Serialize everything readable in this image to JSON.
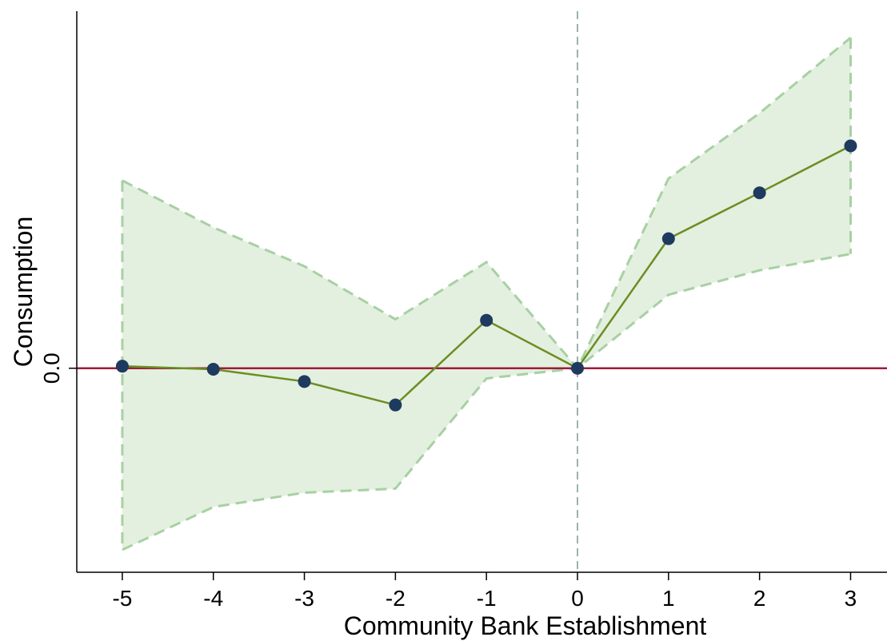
{
  "chart_data": {
    "type": "line",
    "xlabel": "Community Bank Establishment",
    "ylabel": "Consumption",
    "x": [
      -5,
      -4,
      -3,
      -2,
      -1,
      0,
      1,
      2,
      3
    ],
    "x_tick_labels": [
      "-5",
      "-4",
      "-3",
      "-2",
      "-1",
      "0",
      "1",
      "2",
      "3"
    ],
    "y_tick_labels": [
      "0.0"
    ],
    "y_ticks": [
      0.0
    ],
    "xlim": [
      -5.5,
      3.4
    ],
    "ylim": [
      -1.0,
      1.75
    ],
    "series": [
      {
        "values": [
          0.01,
          -0.005,
          -0.065,
          -0.18,
          0.235,
          0.0,
          0.635,
          0.86,
          1.09
        ],
        "ci_upper": [
          0.92,
          0.69,
          0.5,
          0.24,
          0.52,
          0.0,
          0.93,
          1.25,
          1.62
        ],
        "ci_lower": [
          -0.89,
          -0.68,
          -0.61,
          -0.59,
          -0.05,
          0.0,
          0.36,
          0.48,
          0.56
        ]
      }
    ],
    "reference_lines": {
      "horizontal_y": 0.0,
      "vertical_x": 0
    },
    "colors": {
      "line": "#6b8e23",
      "marker": "#1f3a5f",
      "ci_fill": "#e3f0df",
      "ci_border": "#a8d0a4",
      "zero_line": "#9e1b3a",
      "vertical_line": "#7a9a96",
      "axis": "#000000"
    },
    "grid": false,
    "legend": "none"
  }
}
